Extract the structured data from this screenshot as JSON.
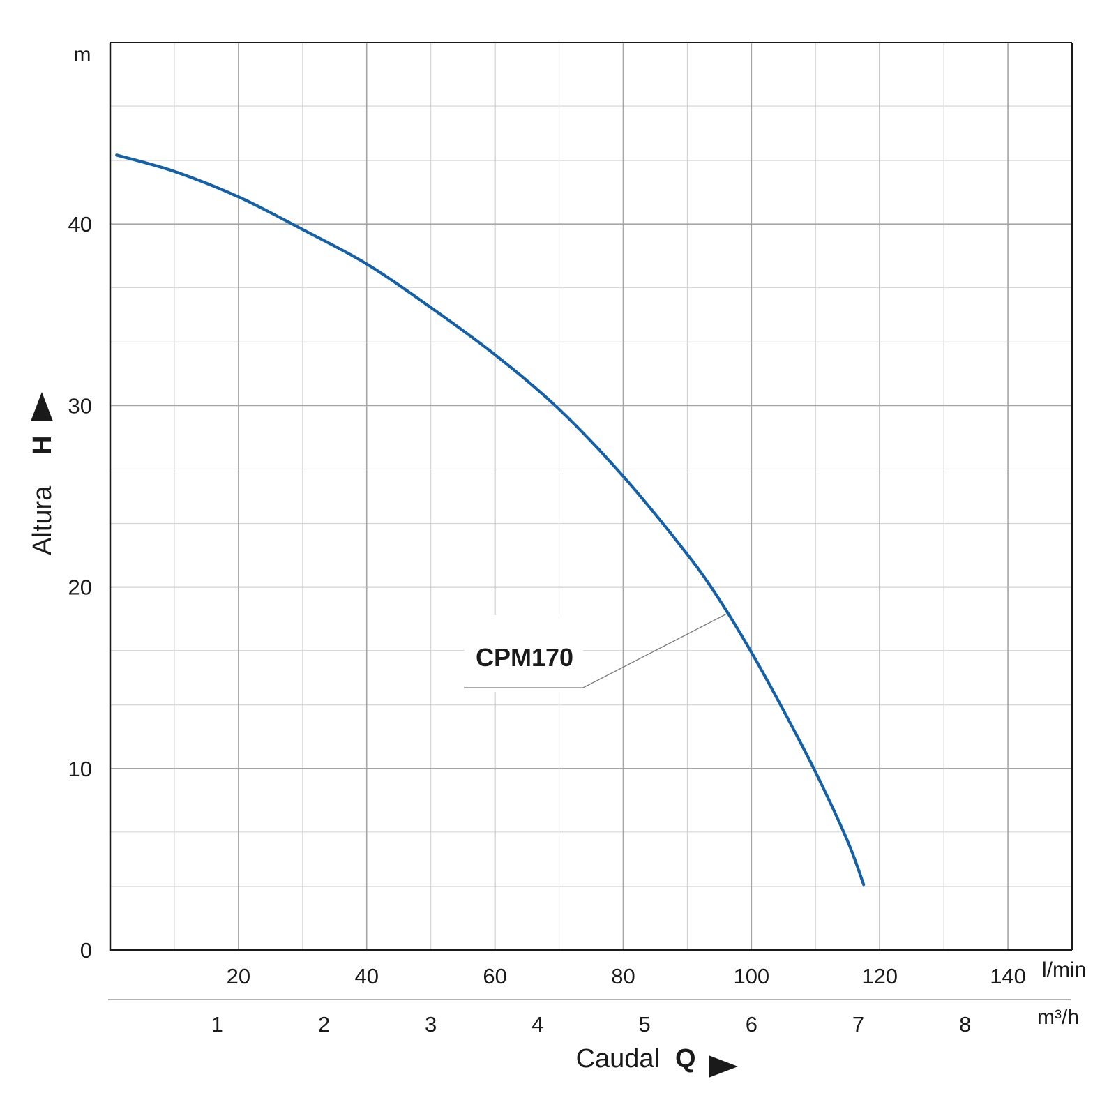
{
  "chart_data": {
    "type": "line",
    "x_unit": "l/min",
    "x_secondary_unit": "m³/h",
    "y_unit": "m",
    "xlabel_word": "Caudal",
    "xlabel_symbol": "Q",
    "ylabel_word": "Altura",
    "ylabel_symbol": "H",
    "xlim": [
      0,
      150
    ],
    "ylim": [
      0,
      50
    ],
    "x_ticks": [
      "20",
      "40",
      "60",
      "80",
      "100",
      "120",
      "140"
    ],
    "x_secondary_ticks": [
      "1",
      "2",
      "3",
      "4",
      "5",
      "6",
      "7",
      "8"
    ],
    "y_ticks": [
      "0",
      "10",
      "20",
      "30",
      "40"
    ],
    "grid": true,
    "series": [
      {
        "name": "CPM170",
        "color": "#1461a8",
        "x": [
          1,
          10,
          20,
          30,
          40,
          50,
          60,
          70,
          80,
          90,
          95,
          100,
          105,
          110,
          115,
          117.5
        ],
        "y": [
          43.8,
          42.9,
          41.5,
          39.7,
          37.8,
          35.4,
          32.8,
          29.8,
          26.1,
          21.8,
          19.3,
          16.4,
          13.2,
          9.8,
          6.0,
          3.6
        ]
      }
    ]
  }
}
